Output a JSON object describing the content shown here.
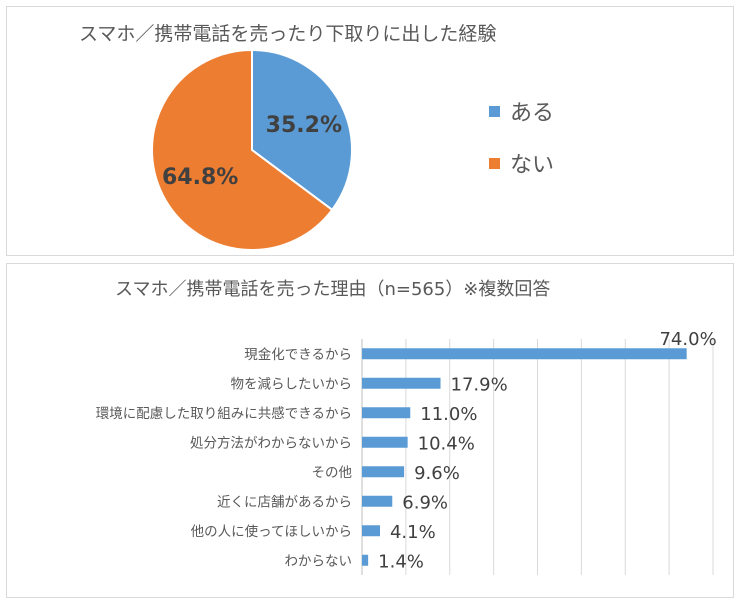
{
  "chart_data": [
    {
      "type": "pie",
      "title": "スマホ／携帯電話を売ったり下取りに出した経験",
      "slices": [
        {
          "label": "ある",
          "value": 35.2,
          "display": "35.2%",
          "color": "#5b9bd5"
        },
        {
          "label": "ない",
          "value": 64.8,
          "display": "64.8%",
          "color": "#ed7d31"
        }
      ],
      "legend": "right"
    },
    {
      "type": "bar",
      "orientation": "horizontal",
      "title": "スマホ／携帯電話を売った理由（n=565）※複数回答",
      "categories": [
        "現金化できるから",
        "物を減らしたいから",
        "環境に配慮した取り組みに共感できるから",
        "処分方法がわからないから",
        "その他",
        "近くに店舗があるから",
        "他の人に使ってほしいから",
        "わからない"
      ],
      "values": [
        74.0,
        17.9,
        11.0,
        10.4,
        9.6,
        6.9,
        4.1,
        1.4
      ],
      "value_labels": [
        "74.0%",
        "17.9%",
        "11.0%",
        "10.4%",
        "9.6%",
        "6.9%",
        "4.1%",
        "1.4%"
      ],
      "xlim": [
        0,
        80
      ],
      "grid": true,
      "color": "#5b9bd5"
    }
  ]
}
